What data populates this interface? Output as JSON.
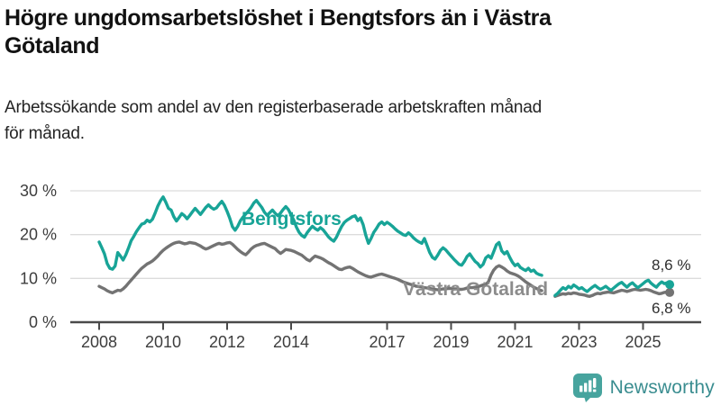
{
  "page": {
    "title_line1": "Högre ungdomsarbetslöshet i Bengtsfors än i Västra",
    "title_line2": "Götaland",
    "subtitle_line1": "Arbetssökande som andel av den registerbaserade arbetskraften månad",
    "subtitle_line2": "för månad."
  },
  "branding": {
    "logo_text": "Newsworthy",
    "logo_icon": "bar-chart-speech-bubble-icon",
    "icon_color": "#47a49e",
    "text_color": "#3a8d90"
  },
  "chart_data": {
    "type": "line",
    "unit": "%",
    "frequency": "monthly",
    "x_start": "2008-01",
    "x_end": "2025-11",
    "data_gap": "2021-12 to 2022-03",
    "grid": true,
    "ylim": [
      0,
      31
    ],
    "x_ticks": [
      2008,
      2010,
      2012,
      2014,
      2017,
      2019,
      2021,
      2023,
      2025
    ],
    "y_ticks": [
      {
        "value": 0,
        "label": "0 %"
      },
      {
        "value": 10,
        "label": "10 %"
      },
      {
        "value": 20,
        "label": "20 %"
      },
      {
        "value": 30,
        "label": "30 %"
      }
    ],
    "series": [
      {
        "name": "Bengtsfors",
        "color": "#18a497",
        "label_color": "#18a497",
        "end_label": "8,6 %",
        "end_value": 8.6,
        "values": [
          18.3,
          17.0,
          15.6,
          13.4,
          12.3,
          12.1,
          12.8,
          15.9,
          15.1,
          14.2,
          15.4,
          16.9,
          18.6,
          19.6,
          20.7,
          21.6,
          22.4,
          22.6,
          23.3,
          22.9,
          23.5,
          24.9,
          26.5,
          27.7,
          28.6,
          27.4,
          26.0,
          25.6,
          24.1,
          23.1,
          23.9,
          24.8,
          24.3,
          23.6,
          24.4,
          25.2,
          26.0,
          25.3,
          24.6,
          25.4,
          26.2,
          26.8,
          26.2,
          25.8,
          26.1,
          26.9,
          27.6,
          26.7,
          25.3,
          23.7,
          21.8,
          21.0,
          21.9,
          23.2,
          24.0,
          24.7,
          25.4,
          26.2,
          27.2,
          27.8,
          27.0,
          26.2,
          25.1,
          24.4,
          25.0,
          25.6,
          24.9,
          24.3,
          24.9,
          25.7,
          26.4,
          25.7,
          24.5,
          23.3,
          21.7,
          20.5,
          19.8,
          19.4,
          20.4,
          21.2,
          21.9,
          21.4,
          21.0,
          21.6,
          21.1,
          20.3,
          19.5,
          18.9,
          18.5,
          19.4,
          20.7,
          21.9,
          22.8,
          23.3,
          23.7,
          24.1,
          24.3,
          23.2,
          23.8,
          22.3,
          19.9,
          18.0,
          19.1,
          20.5,
          21.4,
          22.4,
          22.9,
          22.3,
          22.8,
          22.4,
          21.9,
          21.3,
          20.8,
          20.4,
          20.0,
          19.8,
          20.4,
          19.9,
          19.2,
          18.7,
          18.3,
          18.0,
          19.1,
          17.5,
          15.9,
          14.8,
          14.4,
          15.3,
          16.4,
          17.0,
          16.5,
          15.8,
          15.1,
          14.4,
          13.8,
          13.2,
          13.0,
          13.9,
          15.0,
          15.6,
          14.7,
          13.9,
          13.4,
          12.6,
          13.2,
          14.7,
          15.2,
          14.6,
          16.1,
          17.7,
          18.2,
          16.3,
          15.6,
          16.1,
          14.8,
          13.7,
          12.9,
          13.3,
          12.5,
          12.1,
          11.8,
          12.3,
          11.6,
          11.9,
          11.2,
          10.9,
          10.7,
          null,
          null,
          null,
          null,
          6.1,
          6.6,
          7.3,
          7.9,
          7.5,
          8.2,
          7.8,
          8.5,
          8.1,
          7.6,
          7.9,
          7.4,
          7.0,
          7.5,
          8.0,
          8.4,
          7.9,
          7.5,
          7.8,
          8.2,
          7.7,
          7.3,
          7.8,
          8.3,
          8.8,
          9.1,
          8.5,
          8.0,
          8.6,
          9.0,
          8.4,
          7.9,
          8.3,
          8.8,
          9.3,
          9.6,
          8.9,
          8.4,
          8.0,
          8.7,
          9.2,
          8.8,
          9.0,
          8.6
        ]
      },
      {
        "name": "Västra Götaland",
        "color": "#737373",
        "label_color": "#8c8c8c",
        "end_label": "6,8 %",
        "end_value": 6.8,
        "values": [
          8.2,
          7.9,
          7.6,
          7.2,
          6.9,
          6.7,
          7.0,
          7.3,
          7.2,
          7.6,
          8.2,
          8.9,
          9.6,
          10.3,
          11.0,
          11.7,
          12.3,
          12.8,
          13.3,
          13.6,
          14.0,
          14.5,
          15.1,
          15.8,
          16.4,
          16.9,
          17.3,
          17.7,
          18.0,
          18.2,
          18.3,
          18.1,
          17.9,
          18.0,
          18.2,
          18.1,
          18.0,
          17.7,
          17.4,
          17.0,
          16.7,
          16.9,
          17.2,
          17.5,
          17.8,
          18.0,
          17.8,
          17.9,
          18.1,
          18.2,
          17.8,
          17.2,
          16.6,
          16.1,
          15.7,
          15.4,
          16.0,
          16.7,
          17.2,
          17.5,
          17.7,
          17.9,
          18.0,
          17.7,
          17.4,
          17.1,
          16.8,
          16.2,
          15.7,
          16.1,
          16.6,
          16.5,
          16.4,
          16.2,
          15.9,
          15.6,
          15.3,
          14.8,
          14.3,
          14.0,
          14.6,
          15.1,
          14.9,
          14.7,
          14.4,
          14.0,
          13.6,
          13.3,
          12.9,
          12.5,
          12.1,
          12.0,
          12.3,
          12.5,
          12.6,
          12.3,
          11.9,
          11.5,
          11.2,
          10.9,
          10.6,
          10.4,
          10.3,
          10.5,
          10.7,
          10.9,
          11.0,
          10.8,
          10.6,
          10.4,
          10.2,
          10.0,
          9.8,
          9.5,
          9.2,
          9.0,
          8.8,
          8.6,
          8.4,
          8.2,
          8.1,
          8.0,
          7.9,
          7.8,
          7.7,
          7.6,
          7.5,
          7.4,
          7.5,
          7.6,
          7.6,
          7.7,
          7.7,
          7.6,
          7.6,
          7.5,
          7.5,
          7.6,
          7.8,
          7.9,
          7.9,
          8.0,
          8.1,
          8.3,
          8.5,
          8.6,
          9.2,
          10.8,
          11.9,
          12.6,
          12.9,
          12.6,
          12.2,
          11.7,
          11.3,
          11.1,
          10.9,
          10.6,
          10.2,
          9.7,
          9.2,
          8.8,
          8.4,
          8.0,
          7.7,
          7.4,
          7.2,
          null,
          null,
          null,
          null,
          5.9,
          6.1,
          6.3,
          6.5,
          6.4,
          6.6,
          6.5,
          6.7,
          6.6,
          6.4,
          6.3,
          6.2,
          6.0,
          5.9,
          6.1,
          6.4,
          6.6,
          6.5,
          6.7,
          6.8,
          6.9,
          6.8,
          6.7,
          6.9,
          7.1,
          7.3,
          7.2,
          7.0,
          7.2,
          7.4,
          7.5,
          7.4,
          7.3,
          7.4,
          7.5,
          7.4,
          7.2,
          6.9,
          6.7,
          6.5,
          6.6,
          6.8,
          6.9,
          6.8
        ]
      }
    ]
  }
}
